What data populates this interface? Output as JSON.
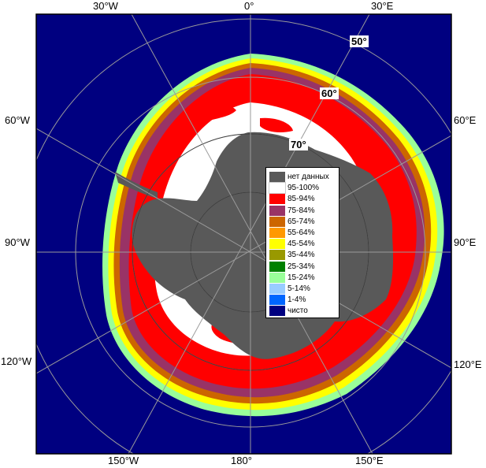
{
  "map": {
    "longitude_labels": {
      "top_w30": "30°W",
      "top_0": "0°",
      "top_e30": "30°E",
      "left_w60": "60°W",
      "left_w90": "90°W",
      "left_w120": "120°W",
      "right_e60": "60°E",
      "right_e90": "90°E",
      "right_e120": "120°E",
      "bottom_w150": "150°W",
      "bottom_180": "180°",
      "bottom_e150": "150°E"
    },
    "latitude_labels": {
      "lat50": "50°",
      "lat60": "60°",
      "lat70": "70°"
    },
    "colors": {
      "open_water": "#000080",
      "no_data": "#595959",
      "graticule": "#9a9a9a"
    }
  },
  "legend": {
    "items": [
      {
        "label": "нет данных",
        "color": "#595959"
      },
      {
        "label": "95-100%",
        "color": "#ffffff"
      },
      {
        "label": "85-94%",
        "color": "#ff0000"
      },
      {
        "label": "75-84%",
        "color": "#993366"
      },
      {
        "label": "65-74%",
        "color": "#cc6600"
      },
      {
        "label": "55-64%",
        "color": "#ff9900"
      },
      {
        "label": "45-54%",
        "color": "#ffff00"
      },
      {
        "label": "35-44%",
        "color": "#999900"
      },
      {
        "label": "25-34%",
        "color": "#008000"
      },
      {
        "label": "15-24%",
        "color": "#99ff99"
      },
      {
        "label": "5-14%",
        "color": "#99ccff"
      },
      {
        "label": "1-4%",
        "color": "#0066ff"
      },
      {
        "label": "чисто",
        "color": "#000080"
      }
    ]
  }
}
